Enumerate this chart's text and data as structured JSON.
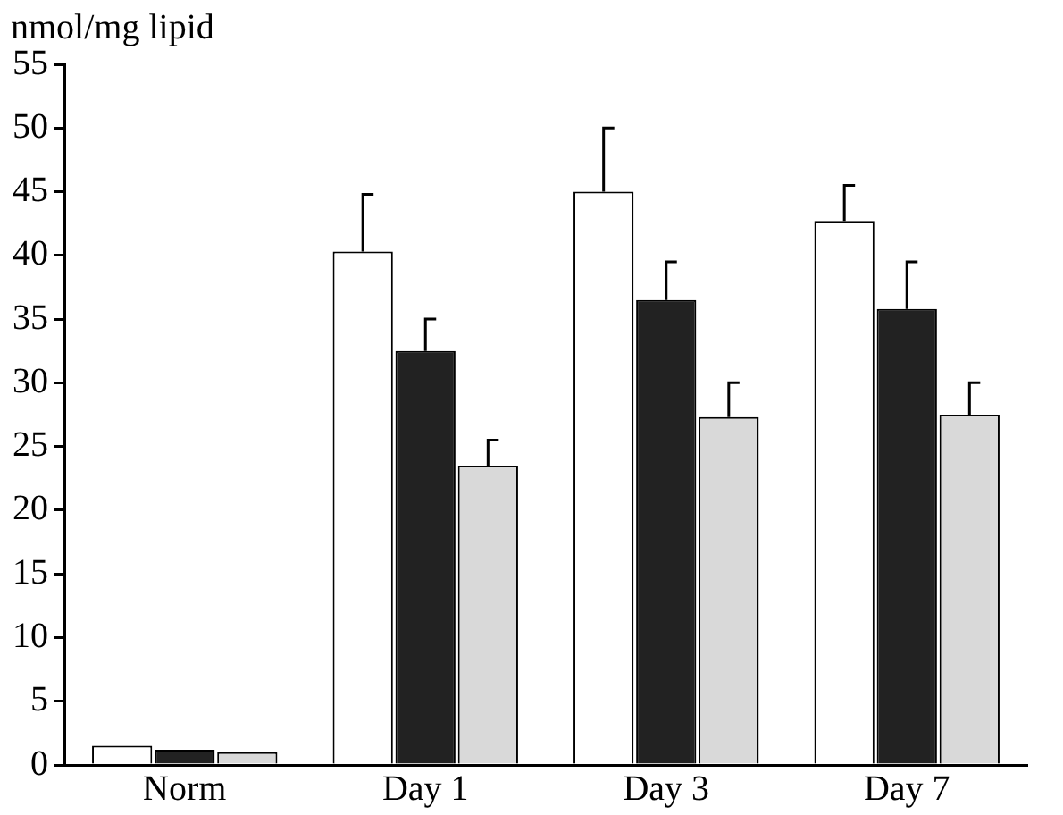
{
  "chart_data": {
    "type": "bar",
    "ylabel": "nmol/mg lipid",
    "categories": [
      "Norm",
      "Day 1",
      "Day 3",
      "Day 7"
    ],
    "series": [
      {
        "color": "#ffffff",
        "values": [
          1.5,
          40.3,
          45,
          42.7
        ],
        "errors": [
          null,
          [
            40.3,
            44.8
          ],
          [
            45,
            50
          ],
          [
            42.7,
            45.5
          ]
        ]
      },
      {
        "color": "#222222",
        "values": [
          1.2,
          32.5,
          36.5,
          35.8
        ],
        "errors": [
          null,
          [
            32.5,
            35
          ],
          [
            36.5,
            39.5
          ],
          [
            35.8,
            39.5
          ]
        ]
      },
      {
        "color": "#d9d9d9",
        "values": [
          1,
          23.5,
          27.3,
          27.5
        ],
        "errors": [
          null,
          [
            23.5,
            25.5
          ],
          [
            27.3,
            30
          ],
          [
            27.5,
            30
          ]
        ]
      }
    ],
    "ylim": [
      0,
      55
    ],
    "yticks": [
      0,
      5,
      10,
      15,
      20,
      25,
      30,
      35,
      40,
      45,
      50,
      55
    ],
    "grid": false,
    "legend": false
  }
}
